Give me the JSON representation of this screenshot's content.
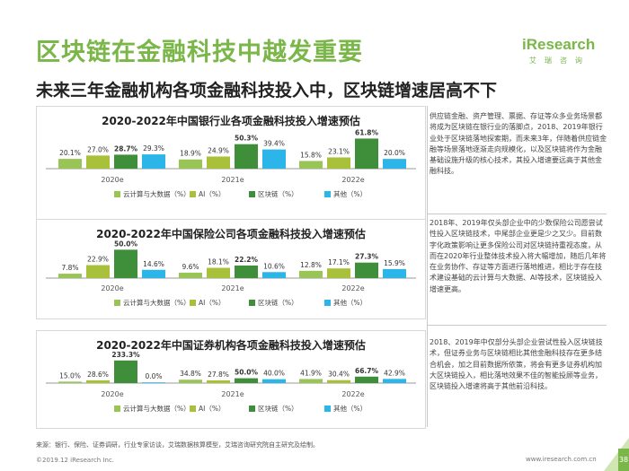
{
  "header": {
    "title": "区块链在金融科技中越发重要",
    "subtitle": "未来三年金融机构各项金融科技投入中，区块链增速居高不下"
  },
  "logo": {
    "name": "iResearch",
    "sub": "艾瑞咨询"
  },
  "colors": {
    "green_dark": "#3f8f3a",
    "green_light": "#98c556",
    "olive": "#a9c13a",
    "blue": "#2bb5e8",
    "brand": "#7ab648"
  },
  "legend": [
    "云计算与大数据（%）",
    "AI（%）",
    "区块链（%）",
    "其他（%）"
  ],
  "chart_data": [
    {
      "type": "bar",
      "title": "2020-2022年中国银行业各项金融科技投入增速预估",
      "categories": [
        "2020e",
        "2021e",
        "2022e"
      ],
      "series": [
        {
          "name": "云计算与大数据（%）",
          "values": [
            20.1,
            18.9,
            15.8
          ]
        },
        {
          "name": "AI（%）",
          "values": [
            27.0,
            24.9,
            23.1
          ]
        },
        {
          "name": "区块链（%）",
          "values": [
            28.7,
            50.3,
            61.8
          ]
        },
        {
          "name": "其他（%）",
          "values": [
            29.3,
            39.4,
            20.0
          ]
        }
      ],
      "labels": [
        [
          "20.1%",
          "27.0%",
          "28.7%",
          "29.3%"
        ],
        [
          "18.9%",
          "24.9%",
          "50.3%",
          "39.4%"
        ],
        [
          "15.8%",
          "23.1%",
          "61.8%",
          "20.0%"
        ]
      ],
      "ylim": [
        0,
        70
      ]
    },
    {
      "type": "bar",
      "title": "2020-2022年中国保险公司各项金融科技投入增速预估",
      "categories": [
        "2020e",
        "2021e",
        "2022e"
      ],
      "series": [
        {
          "name": "云计算与大数据（%）",
          "values": [
            7.8,
            9.6,
            12.8
          ]
        },
        {
          "name": "AI（%）",
          "values": [
            22.9,
            18.1,
            17.1
          ]
        },
        {
          "name": "区块链（%）",
          "values": [
            50.0,
            22.2,
            27.3
          ]
        },
        {
          "name": "其他（%）",
          "values": [
            14.6,
            10.6,
            15.9
          ]
        }
      ],
      "labels": [
        [
          "7.8%",
          "22.9%",
          "50.0%",
          "14.6%"
        ],
        [
          "9.6%",
          "18.1%",
          "22.2%",
          "10.6%"
        ],
        [
          "12.8%",
          "17.1%",
          "27.3%",
          "15.9%"
        ]
      ],
      "ylim": [
        0,
        60
      ]
    },
    {
      "type": "bar",
      "title": "2020-2022年中国证券机构各项金融科技投入增速预估",
      "categories": [
        "2020e",
        "2021e",
        "2022e"
      ],
      "series": [
        {
          "name": "云计算与大数据（%）",
          "values": [
            15.0,
            34.8,
            41.9
          ]
        },
        {
          "name": "AI（%）",
          "values": [
            28.6,
            27.8,
            30.4
          ]
        },
        {
          "name": "区块链（%）",
          "values": [
            233.3,
            50.0,
            66.7
          ]
        },
        {
          "name": "其他（%）",
          "values": [
            0.0,
            40.0,
            42.9
          ]
        }
      ],
      "labels": [
        [
          "15.0%",
          "28.6%",
          "233.3%",
          "0.0%"
        ],
        [
          "34.8%",
          "27.8%",
          "50.0%",
          "40.0%"
        ],
        [
          "41.9%",
          "30.4%",
          "66.7%",
          "42.9%"
        ]
      ],
      "ylim": [
        0,
        250
      ]
    }
  ],
  "side_texts": [
    "供应链金融、资产管理、票据、存证等众多业务场景都将成为区块链在银行业的落脚点，2018、2019年银行业处于区块链落地探索期，而未来3年，伴随着供应链金融等场景落地逐渐走向规模化，以及区块链将作为金融基础设施升级的核心技术，其投入增速要远高于其他金融科技。",
    "2018年、2019年仅头部企业中的少数保险公司愿尝试性投入区块链技术，中尾部企业更是少之又少。目前数字化政策影响让更多保险公司对区块链持重视态度，从而在2020年行业整体技术投入将大幅增加，随后几年将在业务协作、存证等方面进行落地推进，相比于存在技术建设基础的云计算与大数据、AI等技术，区块链投入增速更高。",
    "2018、2019年中仅部分头部企业尝试性投入区块链技术，但证券业务与区块链相比其他金融科技存在更多结合机会，加之目前数据所依策，将会有更多证券机构加大区块链投入，相比落地效果不佳的智能投顾等业务，区块链投入增速将高于其他前沿科技。"
  ],
  "footer": {
    "source": "来源：银行、保险、证券调研，行业专家访谈，艾瑞数据核算模型，艾瑞咨询研究院自主研究及绘制。",
    "copyright": "©2019.12 iResearch Inc.",
    "site": "www.iresearch.com.cn",
    "page": "38"
  }
}
